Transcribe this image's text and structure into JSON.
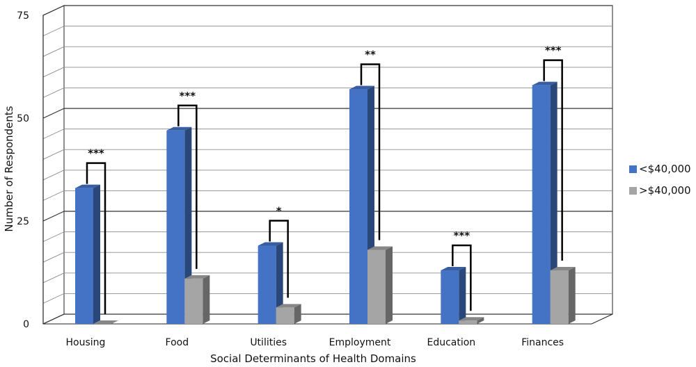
{
  "chart_data": {
    "type": "bar",
    "xlabel": "Social Determinants of Health Domains",
    "ylabel": "Number of Respondents",
    "ylim": [
      0,
      75
    ],
    "yticks": [
      0,
      25,
      50,
      75
    ],
    "categories": [
      "Housing",
      "Food",
      "Utilities",
      "Employment",
      "Education",
      "Finances"
    ],
    "series": [
      {
        "name": "<$40,000",
        "color": "#4472c4",
        "values": [
          33,
          47,
          19,
          57,
          13,
          58
        ]
      },
      {
        "name": ">$40,000",
        "color": "#a5a5a5",
        "values": [
          0,
          11,
          4,
          18,
          0.8,
          13
        ]
      }
    ],
    "significance": [
      "***",
      "***",
      "*",
      "**",
      "***",
      "***"
    ],
    "grid": true,
    "legend": "right"
  }
}
